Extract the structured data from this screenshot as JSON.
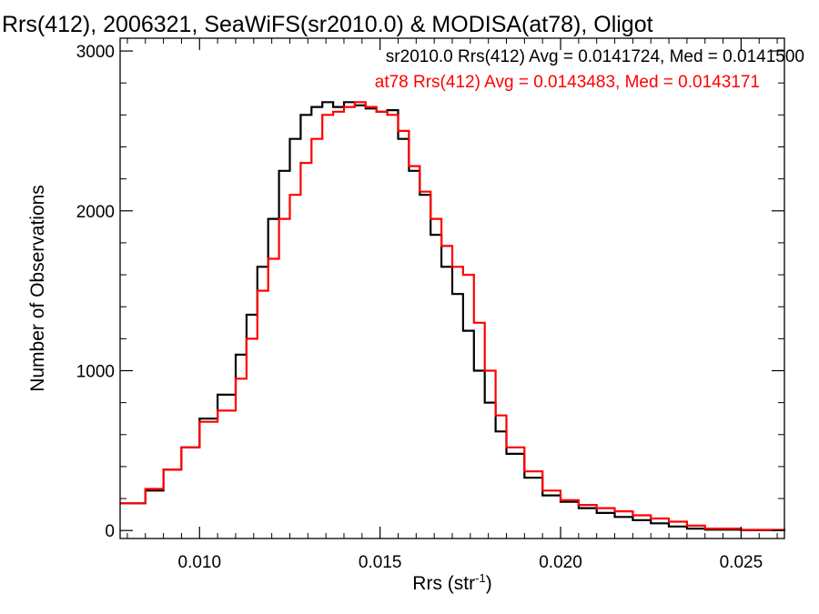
{
  "chart_data": {
    "type": "line",
    "title": "Rrs(412), 2006321, SeaWiFS(sr2010.0) & MODISA(at78), Oligot",
    "xlabel": "Rrs (str",
    "xlabel_sup": "-1",
    "xlabel_close": ")",
    "ylabel": "Number of Observations",
    "xlim": [
      0.0078,
      0.0262
    ],
    "ylim": [
      -50,
      3080
    ],
    "xticks": [
      0.01,
      0.015,
      0.02,
      0.025
    ],
    "xtick_labels": [
      "0.010",
      "0.015",
      "0.020",
      "0.025"
    ],
    "yticks": [
      0,
      1000,
      2000,
      3000
    ],
    "ytick_labels": [
      "0",
      "1000",
      "2000",
      "3000"
    ],
    "grid": false,
    "legend_position": "top-right",
    "series": [
      {
        "name": "sr2010.0",
        "legend": "sr2010.0 Rrs(412) Avg = 0.0141724, Med = 0.0141500",
        "color": "#000000",
        "x": [
          0.0078,
          0.0085,
          0.009,
          0.0095,
          0.01,
          0.0105,
          0.011,
          0.0113,
          0.0116,
          0.0119,
          0.0122,
          0.0125,
          0.0128,
          0.0131,
          0.0134,
          0.0137,
          0.014,
          0.0143,
          0.0146,
          0.0149,
          0.0152,
          0.0155,
          0.0158,
          0.0161,
          0.0164,
          0.0167,
          0.017,
          0.0173,
          0.0176,
          0.0179,
          0.0182,
          0.0185,
          0.019,
          0.0195,
          0.02,
          0.0205,
          0.021,
          0.0215,
          0.022,
          0.0225,
          0.023,
          0.0235,
          0.024,
          0.025,
          0.0262
        ],
        "y": [
          170,
          250,
          380,
          520,
          700,
          850,
          1100,
          1350,
          1650,
          1950,
          2250,
          2450,
          2600,
          2650,
          2680,
          2650,
          2680,
          2660,
          2640,
          2620,
          2630,
          2450,
          2250,
          2100,
          1850,
          1650,
          1480,
          1250,
          1000,
          800,
          620,
          480,
          330,
          220,
          180,
          140,
          110,
          85,
          65,
          45,
          25,
          12,
          5,
          2,
          0
        ]
      },
      {
        "name": "at78",
        "legend": "at78 Rrs(412) Avg = 0.0143483, Med = 0.0143171",
        "color": "#ff0000",
        "x": [
          0.0078,
          0.0085,
          0.009,
          0.0095,
          0.01,
          0.0105,
          0.011,
          0.0113,
          0.0116,
          0.0119,
          0.0122,
          0.0125,
          0.0128,
          0.0131,
          0.0134,
          0.0137,
          0.014,
          0.0143,
          0.0146,
          0.0149,
          0.0152,
          0.0155,
          0.0158,
          0.0161,
          0.0164,
          0.0167,
          0.017,
          0.0173,
          0.0176,
          0.0179,
          0.0182,
          0.0185,
          0.019,
          0.0195,
          0.02,
          0.0205,
          0.021,
          0.0215,
          0.022,
          0.0225,
          0.023,
          0.0235,
          0.024,
          0.025,
          0.0262
        ],
        "y": [
          170,
          260,
          380,
          520,
          680,
          750,
          950,
          1200,
          1500,
          1700,
          1950,
          2100,
          2300,
          2450,
          2600,
          2620,
          2650,
          2680,
          2650,
          2620,
          2600,
          2500,
          2280,
          2120,
          1950,
          1780,
          1650,
          1600,
          1300,
          1000,
          720,
          520,
          370,
          250,
          190,
          160,
          140,
          120,
          95,
          75,
          55,
          30,
          12,
          4,
          0
        ]
      }
    ]
  }
}
